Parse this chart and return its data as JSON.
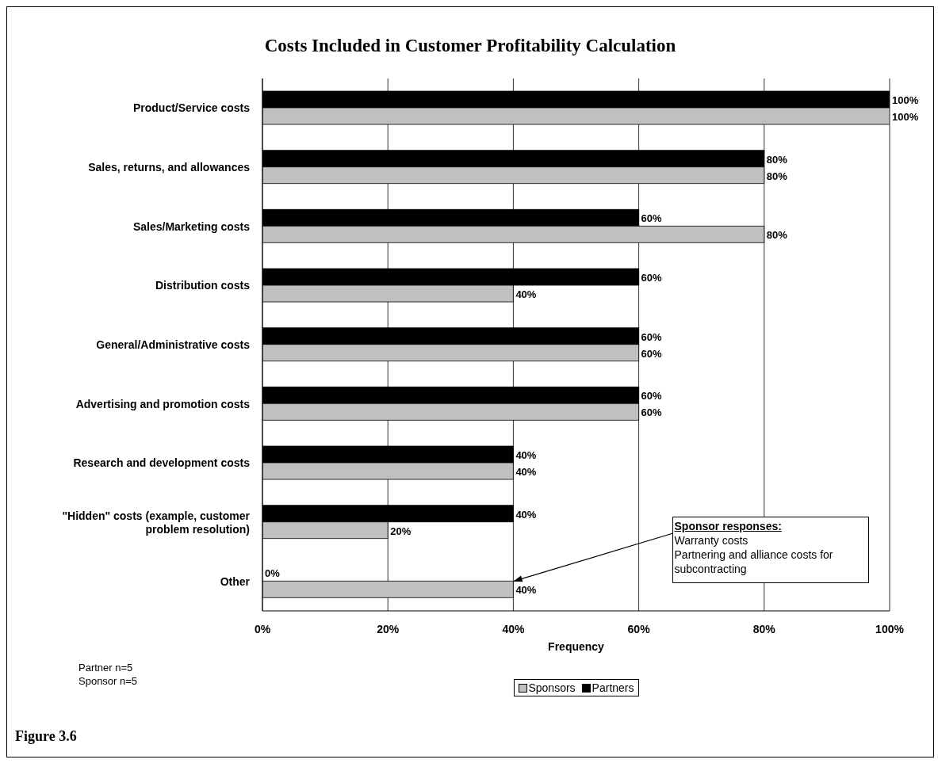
{
  "chart_data": {
    "type": "bar",
    "orientation": "horizontal",
    "title": "Costs Included in Customer Profitability Calculation",
    "xlabel": "Frequency",
    "categories": [
      "Product/Service costs",
      "Sales, returns, and allowances",
      "Sales/Marketing costs",
      "Distribution costs",
      "General/Administrative costs",
      "Advertising and promotion costs",
      "Research and development costs",
      "\"Hidden\" costs (example, customer problem resolution)",
      "Other"
    ],
    "series": [
      {
        "name": "Sponsors",
        "color": "#c0c0c0",
        "values": [
          100,
          80,
          80,
          40,
          60,
          60,
          40,
          20,
          40
        ],
        "value_labels": [
          "100%",
          "80%",
          "80%",
          "40%",
          "60%",
          "60%",
          "40%",
          "20%",
          "40%"
        ]
      },
      {
        "name": "Partners",
        "color": "#000000",
        "values": [
          100,
          80,
          60,
          60,
          60,
          60,
          40,
          40,
          0
        ],
        "value_labels": [
          "100%",
          "80%",
          "60%",
          "60%",
          "60%",
          "60%",
          "40%",
          "40%",
          "0%"
        ]
      }
    ],
    "xlim": [
      0,
      100
    ],
    "xticks": [
      {
        "value": 0,
        "label": "0%"
      },
      {
        "value": 20,
        "label": "20%"
      },
      {
        "value": 40,
        "label": "40%"
      },
      {
        "value": 60,
        "label": "60%"
      },
      {
        "value": 80,
        "label": "80%"
      },
      {
        "value": 100,
        "label": "100%"
      }
    ],
    "grid": "x",
    "legend": "bottom",
    "annotations": [
      {
        "text": "Sponsor responses:\nWarranty costs\nPartnering and alliance costs for subcontracting",
        "x": 40,
        "y": "Other"
      },
      "Partner n=5",
      "Sponsor n=5",
      "Figure 3.6"
    ]
  }
}
